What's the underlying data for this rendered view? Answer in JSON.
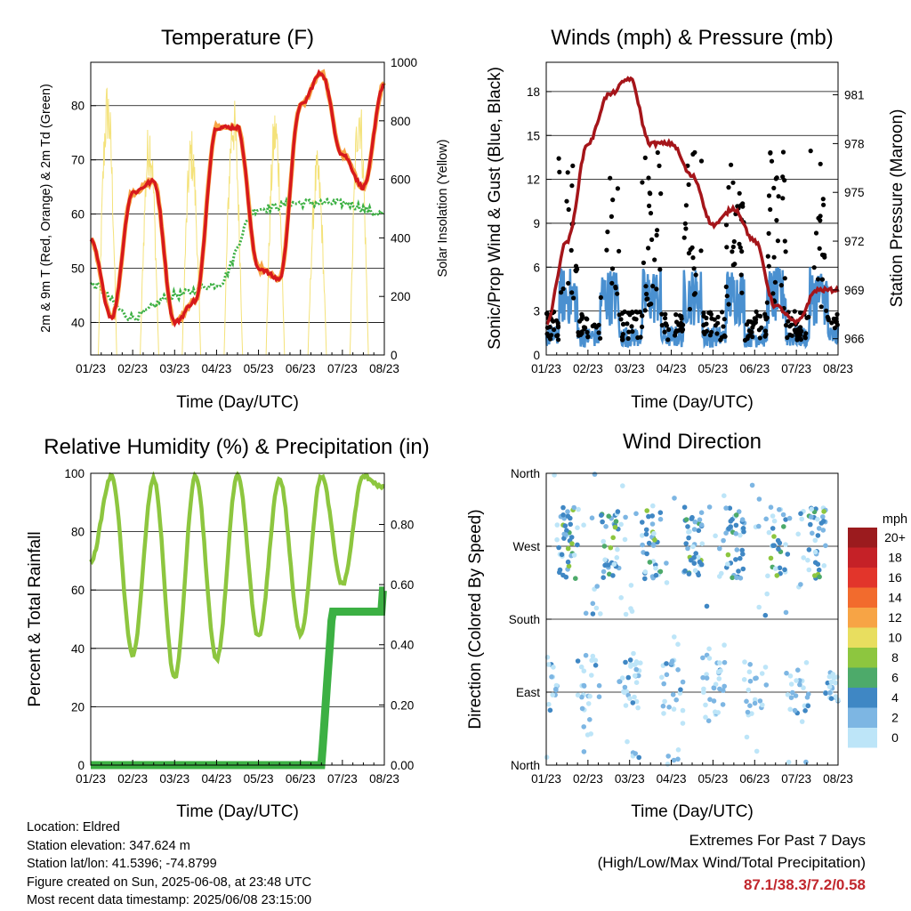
{
  "charts_common": {
    "x_ticks": [
      "01/23",
      "02/23",
      "03/23",
      "04/23",
      "05/23",
      "06/23",
      "07/23",
      "08/23"
    ],
    "xlabel": "Time (Day/UTC)"
  },
  "chart_data": [
    {
      "type": "line",
      "title": "Temperature (F)",
      "xlabel": "Time (Day/UTC)",
      "ylabel": "2m & 9m T (Red, Orange) & 2m Td (Green)",
      "y2label": "Solar Insolation (Yellow)",
      "ylim": [
        34,
        88
      ],
      "y2lim": [
        0,
        1000
      ],
      "yticks": [
        "40",
        "50",
        "60",
        "70",
        "80"
      ],
      "y2ticks": [
        "0",
        "200",
        "400",
        "600",
        "800",
        "1000"
      ],
      "grid": true,
      "series": [
        {
          "name": "2m T",
          "color": "#d7191c",
          "t": [
            0,
            0.5,
            1,
            1.5,
            2,
            2.5,
            3,
            3.5,
            4,
            4.5,
            5,
            5.5,
            6,
            6.5,
            7
          ],
          "values": [
            55,
            41,
            64,
            66,
            40,
            44,
            76,
            76,
            50,
            48,
            80,
            86,
            71,
            65,
            84
          ]
        },
        {
          "name": "2m Td",
          "color": "#3cb043",
          "t": [
            0,
            1,
            2,
            3,
            4,
            5,
            6,
            7
          ],
          "values": [
            47,
            41,
            45,
            47,
            61,
            62,
            62,
            60
          ]
        },
        {
          "name": "Solar Insolation",
          "color": "#f4e27a",
          "t": [
            0.2,
            0.5,
            1.2,
            1.5,
            2.2,
            2.5,
            3.2,
            3.5,
            4.2,
            4.5,
            5.2,
            5.5,
            6.2,
            6.5,
            7
          ],
          "values": [
            0,
            950,
            0,
            820,
            0,
            780,
            0,
            900,
            0,
            860,
            0,
            700,
            0,
            930,
            400
          ]
        }
      ]
    },
    {
      "type": "scatter",
      "title": "Winds (mph) & Pressure (mb)",
      "xlabel": "Time (Day/UTC)",
      "ylabel": "Sonic/Prop Wind & Gust (Blue, Black)",
      "y2label": "Station Pressure (Maroon)",
      "ylim": [
        0,
        20
      ],
      "y2lim": [
        965,
        983
      ],
      "yticks": [
        "0",
        "3",
        "6",
        "9",
        "12",
        "15",
        "18"
      ],
      "y2ticks": [
        "966",
        "969",
        "972",
        "975",
        "978",
        "981"
      ],
      "grid": true,
      "series": [
        {
          "name": "Station Pressure",
          "color": "#a5151a",
          "t": [
            0,
            0.5,
            1,
            1.5,
            2,
            2.5,
            3,
            3.5,
            4,
            4.5,
            5,
            5.5,
            6,
            6.5,
            7
          ],
          "values": [
            967,
            972,
            978,
            981,
            982,
            978,
            978,
            976,
            973,
            974,
            972,
            968,
            967,
            969,
            969
          ]
        }
      ]
    },
    {
      "type": "line",
      "title": "Relative Humidity (%) & Precipitation (in)",
      "xlabel": "Time (Day/UTC)",
      "ylabel": "Percent & Total Rainfall",
      "ylim": [
        0,
        100
      ],
      "y2lim": [
        0,
        0.97
      ],
      "yticks": [
        "0",
        "20",
        "40",
        "60",
        "80",
        "100"
      ],
      "y2ticks": [
        "0.00",
        "0.20",
        "0.40",
        "0.60",
        "0.80"
      ],
      "grid": true,
      "series": [
        {
          "name": "Relative Humidity",
          "color": "#8dc63f",
          "t": [
            0,
            0.5,
            1,
            1.5,
            2,
            2.5,
            3,
            3.5,
            4,
            4.5,
            5,
            5.5,
            6,
            6.5,
            7
          ],
          "values": [
            70,
            99,
            38,
            98,
            30,
            99,
            36,
            99,
            44,
            98,
            45,
            99,
            62,
            99,
            95
          ]
        },
        {
          "name": "Total Precipitation",
          "color": "#3cb043",
          "t": [
            0,
            5.5,
            5.7,
            6,
            7
          ],
          "values": [
            0.0,
            0.0,
            0.5,
            0.51,
            0.58
          ]
        }
      ]
    },
    {
      "type": "scatter",
      "title": "Wind Direction",
      "xlabel": "Time (Day/UTC)",
      "ylabel": "Direction (Colored By Speed)",
      "yticks": [
        "North",
        "East",
        "South",
        "West",
        "North"
      ],
      "grid": true,
      "legend": {
        "title": "mph",
        "placement": "right",
        "labels": [
          "20+",
          "18",
          "16",
          "14",
          "12",
          "10",
          "8",
          "6",
          "4",
          "2",
          "0"
        ],
        "colors": [
          "#9b1b1e",
          "#c52127",
          "#e2352b",
          "#f26b2d",
          "#f7a445",
          "#e8de5f",
          "#8dc63f",
          "#4daa6a",
          "#3f87c4",
          "#7db6e3",
          "#bde5f8"
        ]
      }
    }
  ],
  "info": {
    "location": "Location: Eldred",
    "elevation": "Station elevation: 347.624 m",
    "latlon": "Station lat/lon: 41.5396; -74.8799",
    "created": "Figure created on Sun, 2025-06-08, at 23:48 UTC",
    "recent": "Most recent data timestamp: 2025/06/08 23:15:00"
  },
  "extremes": {
    "title": "Extremes For Past 7 Days",
    "subtitle": "(High/Low/Max Wind/Total Precipitation)",
    "values": "87.1/38.3/7.2/0.58"
  }
}
